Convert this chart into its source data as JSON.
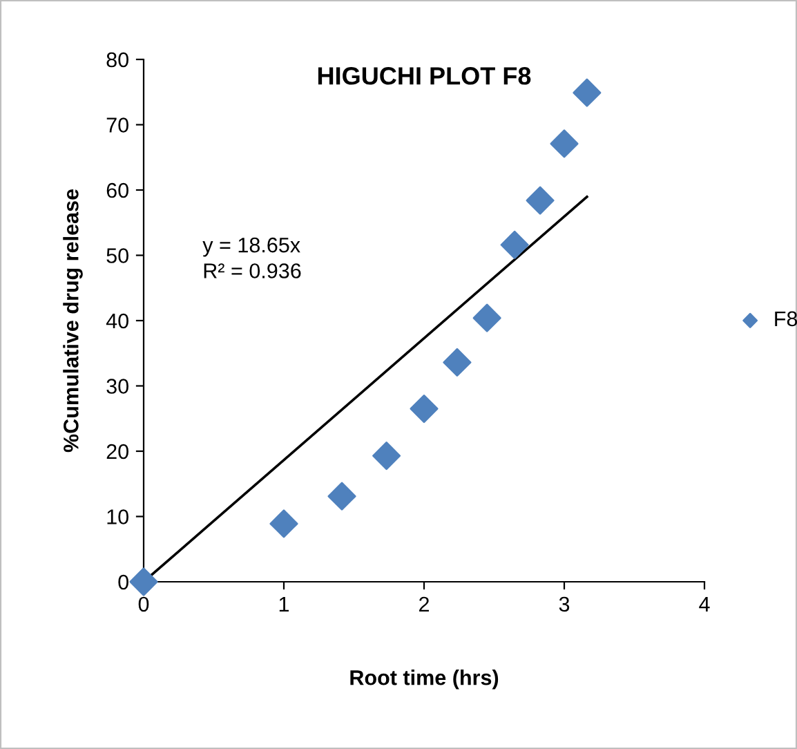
{
  "chart_data": {
    "type": "scatter",
    "title": "HIGUCHI PLOT F8",
    "xlabel": "Root time (hrs)",
    "ylabel": "%Cumulative drug release",
    "x": [
      0,
      1,
      1.414,
      1.732,
      2,
      2.236,
      2.449,
      2.646,
      2.828,
      3,
      3.162
    ],
    "series": [
      {
        "name": "F8",
        "color": "#4f81bd",
        "marker": "diamond",
        "values": [
          0,
          8.9,
          13.1,
          19.3,
          26.5,
          33.6,
          40.4,
          51.6,
          58.4,
          67.1,
          74.9
        ]
      },
      {
        "type": "line",
        "color": "#000000",
        "x": [
          0,
          3.162
        ],
        "values": [
          0,
          58.97
        ]
      }
    ],
    "annotations": [
      "y = 18.65x\nR² = 0.936"
    ],
    "xlim": [
      0,
      4
    ],
    "xticks": [
      0,
      1,
      2,
      3,
      4
    ],
    "ylim": [
      0,
      80
    ],
    "yticks": [
      0,
      10,
      20,
      30,
      40,
      50,
      60,
      70,
      80
    ],
    "grid": false,
    "legend": "right"
  }
}
